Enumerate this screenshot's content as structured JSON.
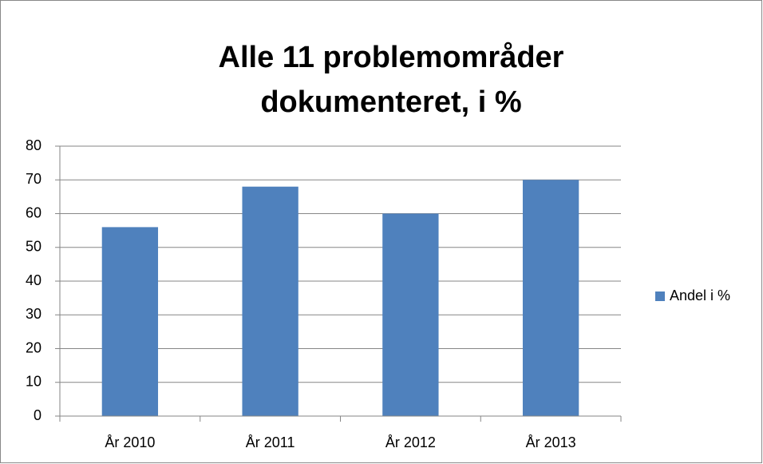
{
  "chart_data": {
    "type": "bar",
    "title": "Alle 11 problemområder dokumenteret, i %",
    "categories": [
      "År 2010",
      "År 2011",
      "År 2012",
      "År 2013"
    ],
    "series": [
      {
        "name": "Andel i %",
        "color": "#4f81bd",
        "values": [
          56,
          68,
          60,
          70
        ]
      }
    ],
    "ylim": [
      0,
      80
    ],
    "yticks": [
      0,
      10,
      20,
      30,
      40,
      50,
      60,
      70,
      80
    ],
    "grid": true,
    "legend": "right"
  }
}
